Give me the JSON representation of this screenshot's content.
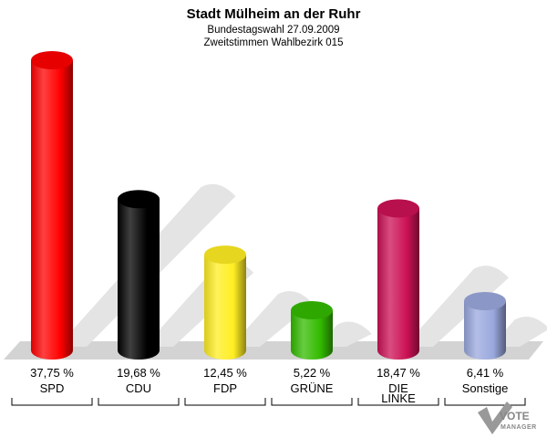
{
  "chart_data": {
    "type": "bar",
    "title": "Stadt Mülheim an der Ruhr",
    "subtitle_lines": [
      "Bundestagswahl 27.09.2009",
      "Zweitstimmen Wahlbezirk 015"
    ],
    "categories": [
      "SPD",
      "CDU",
      "FDP",
      "GRÜNE",
      "DIE LINKE",
      "Sonstige"
    ],
    "category_lines": [
      [
        "SPD"
      ],
      [
        "CDU"
      ],
      [
        "FDP"
      ],
      [
        "GRÜNE"
      ],
      [
        "DIE",
        "LINKE"
      ],
      [
        "Sonstige"
      ]
    ],
    "values": [
      37.75,
      19.68,
      12.45,
      5.22,
      18.47,
      6.41
    ],
    "value_labels": [
      "37,75 %",
      "19,68 %",
      "12,45 %",
      "5,22 %",
      "18,47 %",
      "6,41 %"
    ],
    "colors": [
      "#ff0000",
      "#000000",
      "#ffee22",
      "#33bb00",
      "#cc1155",
      "#99a8dd"
    ],
    "ylim": [
      0,
      40
    ]
  },
  "logo": {
    "text": "VOTE",
    "subtext": "MANAGER"
  }
}
